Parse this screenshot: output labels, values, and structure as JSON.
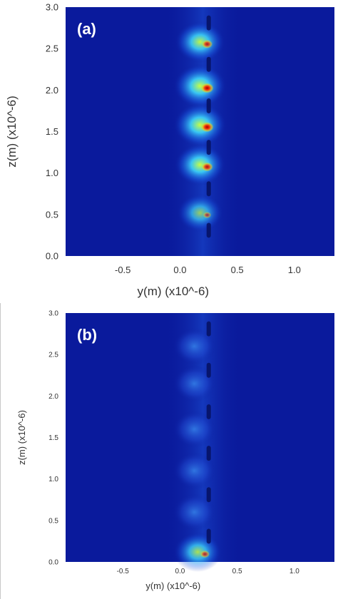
{
  "chart_data": [
    {
      "type": "heatmap",
      "panel_label": "(a)",
      "xlabel": "y(m) (x10^-6)",
      "ylabel": "z(m) (x10^-6)",
      "xlim": [
        -1.0,
        1.35
      ],
      "ylim": [
        0.0,
        3.0
      ],
      "xticks": [
        -0.5,
        0.0,
        0.5,
        1.0
      ],
      "xtick_labels": [
        "-0.5",
        "0.0",
        "0.5",
        "1.0"
      ],
      "yticks": [
        0.0,
        0.5,
        1.0,
        1.5,
        2.0,
        2.5,
        3.0
      ],
      "ytick_labels": [
        "0.0",
        "0.5",
        "1.0",
        "1.5",
        "2.0",
        "2.5",
        "3.0"
      ],
      "background_color": "#0a1a9c",
      "structure_y": 0.22,
      "hotspots": [
        {
          "y": 0.2,
          "z": 2.58,
          "intensity": 0.85
        },
        {
          "y": 0.2,
          "z": 2.05,
          "intensity": 1.0
        },
        {
          "y": 0.2,
          "z": 1.58,
          "intensity": 1.0
        },
        {
          "y": 0.2,
          "z": 1.1,
          "intensity": 0.9
        },
        {
          "y": 0.2,
          "z": 0.52,
          "intensity": 0.65
        }
      ]
    },
    {
      "type": "heatmap",
      "panel_label": "(b)",
      "xlabel": "y(m) (x10^-6)",
      "ylabel": "z(m) (x10^-6)",
      "xlim": [
        -1.0,
        1.35
      ],
      "ylim": [
        0.0,
        3.0
      ],
      "xticks": [
        -0.5,
        0.0,
        0.5,
        1.0
      ],
      "xtick_labels": [
        "-0.5",
        "0.0",
        "0.5",
        "1.0"
      ],
      "yticks": [
        0.0,
        0.5,
        1.0,
        1.5,
        2.0,
        2.5,
        3.0
      ],
      "ytick_labels": [
        "0.0",
        "0.5",
        "1.0",
        "1.5",
        "2.0",
        "2.5",
        "3.0"
      ],
      "background_color": "#0a1a9c",
      "structure_y": 0.22,
      "hotspots": [
        {
          "y": 0.15,
          "z": 2.6,
          "intensity": 0.3
        },
        {
          "y": 0.15,
          "z": 2.15,
          "intensity": 0.3
        },
        {
          "y": 0.15,
          "z": 1.6,
          "intensity": 0.3
        },
        {
          "y": 0.15,
          "z": 1.1,
          "intensity": 0.3
        },
        {
          "y": 0.15,
          "z": 0.6,
          "intensity": 0.3
        },
        {
          "y": 0.18,
          "z": 0.12,
          "intensity": 0.75
        }
      ]
    }
  ]
}
